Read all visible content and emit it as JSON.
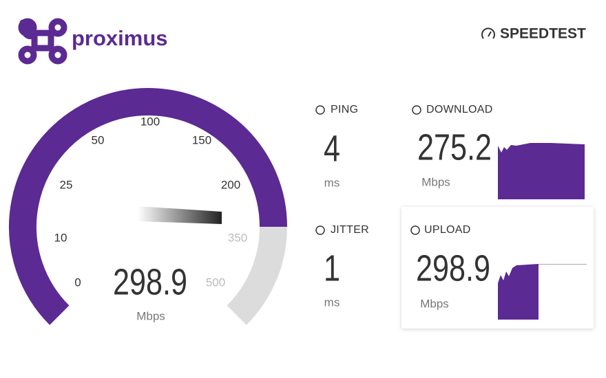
{
  "header": {
    "brand": "proximus",
    "app": "SPEEDTEST"
  },
  "gauge": {
    "ticks": [
      "0",
      "10",
      "25",
      "50",
      "100",
      "150",
      "200",
      "350",
      "500"
    ],
    "value": "298.9",
    "unit": "Mbps"
  },
  "ping": {
    "label": "PING",
    "value": "4",
    "unit": "ms"
  },
  "jitter": {
    "label": "JITTER",
    "value": "1",
    "unit": "ms"
  },
  "download": {
    "label": "DOWNLOAD",
    "value": "275.2",
    "unit": "Mbps"
  },
  "upload": {
    "label": "UPLOAD",
    "value": "298.9",
    "unit": "Mbps"
  }
}
